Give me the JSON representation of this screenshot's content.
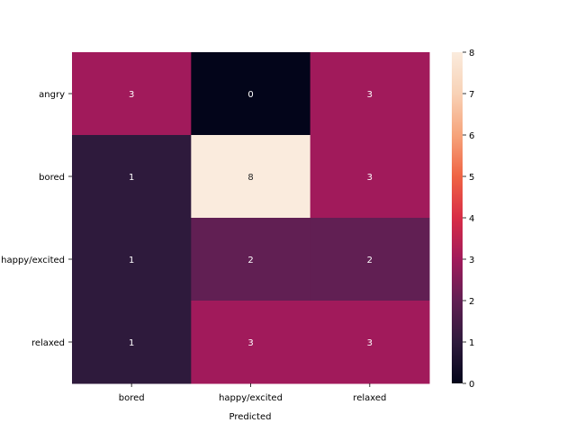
{
  "chart_data": {
    "type": "heatmap",
    "title": "",
    "xlabel": "Predicted",
    "ylabel": "",
    "x_categories": [
      "bored",
      "happy/excited",
      "relaxed"
    ],
    "y_categories": [
      "angry",
      "bored",
      "happy/excited",
      "relaxed"
    ],
    "values": [
      [
        3,
        0,
        3
      ],
      [
        1,
        8,
        3
      ],
      [
        1,
        2,
        2
      ],
      [
        1,
        3,
        3
      ]
    ],
    "colorbar": {
      "min": 0,
      "max": 8,
      "ticks": [
        0,
        1,
        2,
        3,
        4,
        5,
        6,
        7,
        8
      ]
    },
    "colormap": "rocket",
    "annotation_color_light": "#ffffff",
    "annotation_color_dark": "#262626"
  }
}
